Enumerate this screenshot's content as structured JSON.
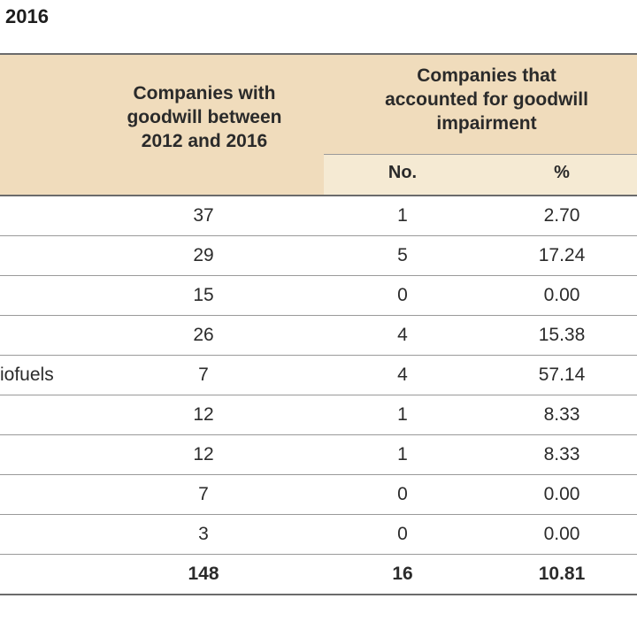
{
  "title": "2016",
  "headers": {
    "goodwill": [
      "Companies with",
      "goodwill between",
      "2012 and 2016"
    ],
    "impairment": [
      "Companies that",
      "accounted for goodwill",
      "impairment"
    ],
    "no": "No.",
    "pct": "%"
  },
  "rows": [
    {
      "label": "",
      "goodwill": "37",
      "no": "1",
      "pct": "2.70"
    },
    {
      "label": "",
      "goodwill": "29",
      "no": "5",
      "pct": "17.24"
    },
    {
      "label": "",
      "goodwill": "15",
      "no": "0",
      "pct": "0.00"
    },
    {
      "label": "",
      "goodwill": "26",
      "no": "4",
      "pct": "15.38"
    },
    {
      "label": "iofuels",
      "goodwill": "7",
      "no": "4",
      "pct": "57.14"
    },
    {
      "label": "",
      "goodwill": "12",
      "no": "1",
      "pct": "8.33"
    },
    {
      "label": "",
      "goodwill": "12",
      "no": "1",
      "pct": "8.33"
    },
    {
      "label": "",
      "goodwill": "7",
      "no": "0",
      "pct": "0.00"
    },
    {
      "label": "",
      "goodwill": "3",
      "no": "0",
      "pct": "0.00"
    }
  ],
  "total": {
    "label": "",
    "goodwill": "148",
    "no": "16",
    "pct": "10.81"
  }
}
